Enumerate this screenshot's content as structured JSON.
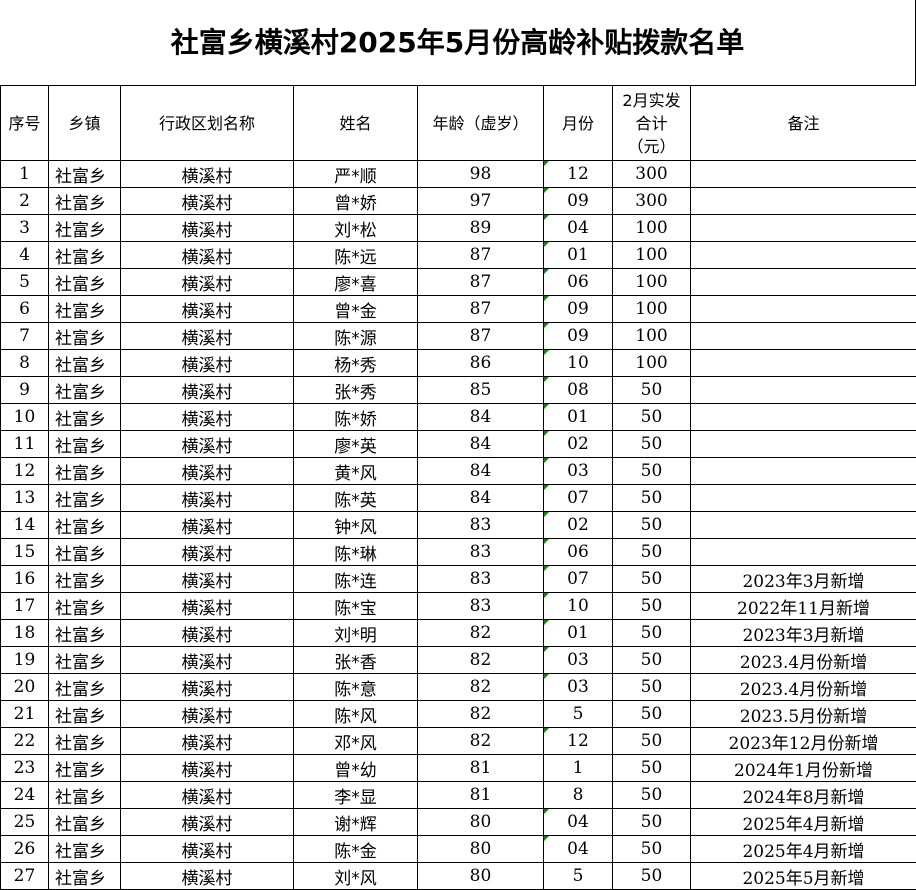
{
  "title": "社富乡横溪村2025年5月份高龄补贴拨款名单",
  "headers": [
    "序号",
    "乡镇",
    "行政区划名称",
    "姓名",
    "年龄（虚岁）",
    "月份",
    "2月实发合计（元）",
    "备注"
  ],
  "rows": [
    [
      "1",
      "社富乡",
      "横溪村",
      "严*顺",
      "98",
      "12",
      "300",
      ""
    ],
    [
      "2",
      "社富乡",
      "横溪村",
      "曾*娇",
      "97",
      "09",
      "300",
      ""
    ],
    [
      "3",
      "社富乡",
      "横溪村",
      "刘*松",
      "89",
      "04",
      "100",
      ""
    ],
    [
      "4",
      "社富乡",
      "横溪村",
      "陈*远",
      "87",
      "01",
      "100",
      ""
    ],
    [
      "5",
      "社富乡",
      "横溪村",
      "廖*喜",
      "87",
      "06",
      "100",
      ""
    ],
    [
      "6",
      "社富乡",
      "横溪村",
      "曾*金",
      "87",
      "09",
      "100",
      ""
    ],
    [
      "7",
      "社富乡",
      "横溪村",
      "陈*源",
      "87",
      "09",
      "100",
      ""
    ],
    [
      "8",
      "社富乡",
      "横溪村",
      "杨*秀",
      "86",
      "10",
      "100",
      ""
    ],
    [
      "9",
      "社富乡",
      "横溪村",
      "张*秀",
      "85",
      "08",
      "50",
      ""
    ],
    [
      "10",
      "社富乡",
      "横溪村",
      "陈*娇",
      "84",
      "01",
      "50",
      ""
    ],
    [
      "11",
      "社富乡",
      "横溪村",
      "廖*英",
      "84",
      "02",
      "50",
      ""
    ],
    [
      "12",
      "社富乡",
      "横溪村",
      "黄*风",
      "84",
      "03",
      "50",
      ""
    ],
    [
      "13",
      "社富乡",
      "横溪村",
      "陈*英",
      "84",
      "07",
      "50",
      ""
    ],
    [
      "14",
      "社富乡",
      "横溪村",
      "钟*风",
      "83",
      "02",
      "50",
      ""
    ],
    [
      "15",
      "社富乡",
      "横溪村",
      "陈*琳",
      "83",
      "06",
      "50",
      ""
    ],
    [
      "16",
      "社富乡",
      "横溪村",
      "陈*连",
      "83",
      "07",
      "50",
      "2023年3月新增"
    ],
    [
      "17",
      "社富乡",
      "横溪村",
      "陈*宝",
      "83",
      "10",
      "50",
      "2022年11月新增"
    ],
    [
      "18",
      "社富乡",
      "横溪村",
      "刘*明",
      "82",
      "01",
      "50",
      "2023年3月新增"
    ],
    [
      "19",
      "社富乡",
      "横溪村",
      "张*香",
      "82",
      "03",
      "50",
      "2023.4月份新增"
    ],
    [
      "20",
      "社富乡",
      "横溪村",
      "陈*意",
      "82",
      "03",
      "50",
      "2023.4月份新增"
    ],
    [
      "21",
      "社富乡",
      "横溪村",
      "陈*风",
      "82",
      "5",
      "50",
      "2023.5月份新增"
    ],
    [
      "22",
      "社富乡",
      "横溪村",
      "邓*风",
      "82",
      "12",
      "50",
      "2023年12月份新增"
    ],
    [
      "23",
      "社富乡",
      "横溪村",
      "曾*幼",
      "81",
      "1",
      "50",
      "2024年1月份新增"
    ],
    [
      "24",
      "社富乡",
      "横溪村",
      "李*显",
      "81",
      "8",
      "50",
      "2024年8月新增"
    ],
    [
      "25",
      "社富乡",
      "横溪村",
      "谢*辉",
      "80",
      "04",
      "50",
      "2025年4月新增"
    ],
    [
      "26",
      "社富乡",
      "横溪村",
      "陈*金",
      "80",
      "04",
      "50",
      "2025年4月新增"
    ],
    [
      "27",
      "社富乡",
      "横溪村",
      "刘*风",
      "80",
      "5",
      "50",
      "2025年5月新增"
    ]
  ],
  "colors": {
    "text_marker": "#1a7f1a",
    "grid": "#000000"
  }
}
